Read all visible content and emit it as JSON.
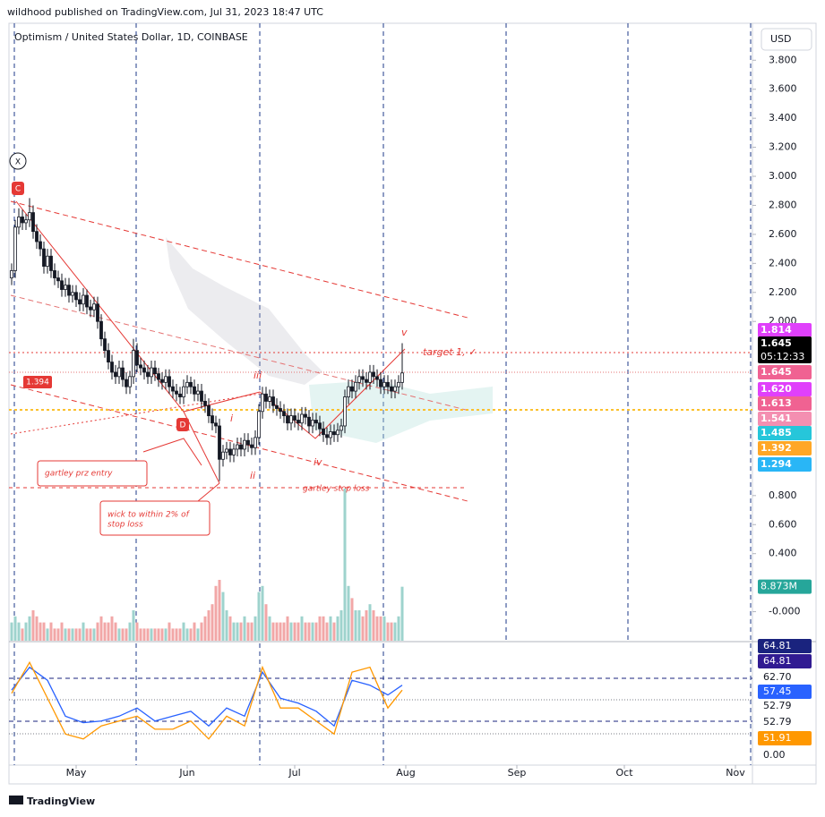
{
  "header": {
    "text": "wildhood published on TradingView.com, Jul 31, 2023 18:47 UTC"
  },
  "footer": {
    "brand": "TradingView"
  },
  "chart_data": {
    "type": "candlestick",
    "title": "Optimism / United States Dollar, 1D, COINBASE",
    "currency": "USD",
    "up_color": "#ffffff",
    "down_color": "#131722",
    "edge_color": "#131722",
    "x": [
      103,
      104,
      105,
      106,
      107,
      108,
      109,
      110,
      111,
      112,
      113,
      114,
      115,
      116,
      117,
      118,
      119,
      120,
      121,
      122,
      123,
      124,
      125,
      126,
      127,
      128,
      129,
      130,
      131,
      132,
      133,
      134,
      135,
      136,
      137,
      138,
      139,
      140,
      141,
      142,
      143,
      144,
      145,
      146,
      147,
      148,
      149,
      150,
      151,
      152,
      153,
      154,
      155,
      156,
      157,
      158,
      159,
      160,
      161,
      162,
      163,
      164,
      165,
      166,
      167,
      168,
      169,
      170,
      171,
      172,
      173,
      174,
      175,
      176,
      177,
      178,
      179,
      180,
      181,
      182,
      183,
      184,
      185,
      186,
      187,
      188,
      189,
      190,
      191,
      192,
      193,
      194,
      195,
      196,
      197,
      198,
      199,
      200,
      201,
      202,
      203,
      204,
      205,
      206,
      207,
      208,
      209,
      210,
      211,
      212
    ],
    "open": [
      2.3,
      2.35,
      2.65,
      2.72,
      2.68,
      2.7,
      2.75,
      2.62,
      2.55,
      2.5,
      2.38,
      2.45,
      2.35,
      2.3,
      2.28,
      2.22,
      2.25,
      2.18,
      2.2,
      2.15,
      2.12,
      2.18,
      2.1,
      2.08,
      2.12,
      2.0,
      1.88,
      1.8,
      1.72,
      1.65,
      1.62,
      1.68,
      1.6,
      1.55,
      1.62,
      1.8,
      1.7,
      1.68,
      1.65,
      1.62,
      1.68,
      1.64,
      1.6,
      1.58,
      1.62,
      1.55,
      1.52,
      1.5,
      1.48,
      1.55,
      1.58,
      1.55,
      1.5,
      1.52,
      1.45,
      1.42,
      1.35,
      1.3,
      1.28,
      1.05,
      1.1,
      1.12,
      1.08,
      1.12,
      1.15,
      1.12,
      1.18,
      1.15,
      1.13,
      1.2,
      1.38,
      1.5,
      1.45,
      1.48,
      1.42,
      1.4,
      1.38,
      1.35,
      1.3,
      1.35,
      1.32,
      1.3,
      1.36,
      1.34,
      1.28,
      1.32,
      1.3,
      1.26,
      1.22,
      1.2,
      1.24,
      1.22,
      1.25,
      1.28,
      1.48,
      1.55,
      1.52,
      1.58,
      1.62,
      1.6,
      1.58,
      1.65,
      1.62,
      1.6,
      1.55,
      1.58,
      1.55,
      1.52,
      1.55,
      1.58
    ],
    "high": [
      2.4,
      2.7,
      2.78,
      2.77,
      2.74,
      2.85,
      2.8,
      2.67,
      2.6,
      2.55,
      2.5,
      2.5,
      2.4,
      2.35,
      2.33,
      2.3,
      2.3,
      2.25,
      2.25,
      2.2,
      2.23,
      2.22,
      2.15,
      2.17,
      2.17,
      2.05,
      1.93,
      1.85,
      1.77,
      1.7,
      1.73,
      1.73,
      1.65,
      1.66,
      1.88,
      1.85,
      1.75,
      1.73,
      1.7,
      1.73,
      1.73,
      1.68,
      1.65,
      1.67,
      1.67,
      1.6,
      1.57,
      1.55,
      1.6,
      1.63,
      1.62,
      1.6,
      1.57,
      1.57,
      1.5,
      1.47,
      1.4,
      1.35,
      1.33,
      1.15,
      1.17,
      1.17,
      1.16,
      1.2,
      1.2,
      1.23,
      1.23,
      1.2,
      1.25,
      1.43,
      1.55,
      1.55,
      1.53,
      1.53,
      1.47,
      1.45,
      1.43,
      1.4,
      1.4,
      1.4,
      1.37,
      1.41,
      1.41,
      1.39,
      1.37,
      1.37,
      1.35,
      1.31,
      1.27,
      1.29,
      1.29,
      1.3,
      1.33,
      1.53,
      1.6,
      1.6,
      1.63,
      1.67,
      1.67,
      1.65,
      1.7,
      1.7,
      1.67,
      1.65,
      1.63,
      1.63,
      1.6,
      1.6,
      1.63,
      1.85
    ],
    "low": [
      2.25,
      2.3,
      2.6,
      2.63,
      2.63,
      2.65,
      2.57,
      2.5,
      2.45,
      2.33,
      2.33,
      2.3,
      2.25,
      2.23,
      2.17,
      2.17,
      2.13,
      2.13,
      2.1,
      2.07,
      2.07,
      2.05,
      2.03,
      2.03,
      1.95,
      1.83,
      1.75,
      1.67,
      1.6,
      1.57,
      1.57,
      1.55,
      1.5,
      1.5,
      1.57,
      1.65,
      1.63,
      1.6,
      1.57,
      1.57,
      1.59,
      1.55,
      1.53,
      1.53,
      1.5,
      1.47,
      1.45,
      1.43,
      1.43,
      1.5,
      1.5,
      1.45,
      1.45,
      1.4,
      1.37,
      1.3,
      1.25,
      1.23,
      0.9,
      1.0,
      1.05,
      1.03,
      1.03,
      1.07,
      1.07,
      1.07,
      1.1,
      1.08,
      1.08,
      1.15,
      1.33,
      1.4,
      1.4,
      1.37,
      1.35,
      1.33,
      1.3,
      1.25,
      1.25,
      1.27,
      1.25,
      1.25,
      1.29,
      1.23,
      1.23,
      1.25,
      1.21,
      1.17,
      1.15,
      1.15,
      1.17,
      1.17,
      1.2,
      1.23,
      1.43,
      1.47,
      1.47,
      1.53,
      1.55,
      1.53,
      1.53,
      1.57,
      1.55,
      1.5,
      1.5,
      1.5,
      1.47,
      1.47,
      1.5,
      1.53
    ],
    "close": [
      2.35,
      2.65,
      2.72,
      2.68,
      2.7,
      2.75,
      2.62,
      2.55,
      2.5,
      2.38,
      2.45,
      2.35,
      2.3,
      2.28,
      2.22,
      2.25,
      2.18,
      2.2,
      2.15,
      2.12,
      2.18,
      2.1,
      2.08,
      2.12,
      2.0,
      1.88,
      1.8,
      1.72,
      1.65,
      1.62,
      1.68,
      1.6,
      1.55,
      1.62,
      1.8,
      1.7,
      1.68,
      1.65,
      1.62,
      1.68,
      1.64,
      1.6,
      1.58,
      1.62,
      1.55,
      1.52,
      1.5,
      1.48,
      1.55,
      1.58,
      1.55,
      1.5,
      1.52,
      1.45,
      1.42,
      1.35,
      1.3,
      1.28,
      1.05,
      1.1,
      1.12,
      1.08,
      1.12,
      1.15,
      1.12,
      1.18,
      1.15,
      1.13,
      1.2,
      1.38,
      1.5,
      1.45,
      1.48,
      1.42,
      1.4,
      1.38,
      1.35,
      1.3,
      1.35,
      1.32,
      1.3,
      1.36,
      1.34,
      1.28,
      1.32,
      1.3,
      1.26,
      1.22,
      1.2,
      1.24,
      1.22,
      1.25,
      1.28,
      1.48,
      1.55,
      1.52,
      1.58,
      1.62,
      1.6,
      1.58,
      1.65,
      1.62,
      1.6,
      1.55,
      1.58,
      1.55,
      1.52,
      1.55,
      1.58,
      1.645
    ],
    "xlim": [
      102.25,
      309.75
    ],
    "xticks": [
      {
        "value": 121,
        "label": "May"
      },
      {
        "value": 152,
        "label": "Jun"
      },
      {
        "value": 182,
        "label": "Jul"
      },
      {
        "value": 213,
        "label": "Aug"
      },
      {
        "value": 244,
        "label": "Sep"
      },
      {
        "value": 274,
        "label": "Oct"
      },
      {
        "value": 305,
        "label": "Nov"
      }
    ],
    "ylim": [
      -0.2,
      4.03
    ],
    "yticks": [
      {
        "value": 3.8,
        "label": "3.800"
      },
      {
        "value": 3.6,
        "label": "3.600"
      },
      {
        "value": 3.4,
        "label": "3.400"
      },
      {
        "value": 3.2,
        "label": "3.200"
      },
      {
        "value": 3.0,
        "label": "3.000"
      },
      {
        "value": 2.8,
        "label": "2.800"
      },
      {
        "value": 2.6,
        "label": "2.600"
      },
      {
        "value": 2.4,
        "label": "2.400"
      },
      {
        "value": 2.2,
        "label": "2.200"
      },
      {
        "value": 2.0,
        "label": "2.000"
      },
      {
        "value": 0.8,
        "label": "0.800"
      },
      {
        "value": 0.6,
        "label": "0.600"
      },
      {
        "value": 0.4,
        "label": "0.400"
      },
      {
        "value": 0,
        "label": "-0.000"
      }
    ],
    "volume": {
      "up_color": "#9ed3cd",
      "down_color": "#f2a7a7",
      "values": [
        3,
        4,
        3,
        2,
        3,
        4,
        5,
        4,
        3,
        3,
        2,
        3,
        2,
        2,
        3,
        2,
        2,
        2,
        2,
        2,
        3,
        2,
        2,
        2,
        3,
        4,
        3,
        3,
        4,
        3,
        2,
        2,
        2,
        3,
        5,
        3,
        2,
        2,
        2,
        2,
        2,
        2,
        2,
        2,
        3,
        2,
        2,
        2,
        3,
        2,
        2,
        3,
        2,
        3,
        4,
        5,
        6,
        9,
        10,
        8,
        5,
        4,
        3,
        3,
        3,
        4,
        3,
        3,
        4,
        8,
        9,
        6,
        4,
        3,
        3,
        3,
        3,
        4,
        3,
        3,
        3,
        4,
        3,
        3,
        3,
        3,
        4,
        4,
        3,
        4,
        3,
        4,
        5,
        25,
        9,
        7,
        5,
        5,
        4,
        5,
        6,
        5,
        4,
        4,
        4,
        3,
        3,
        3,
        4,
        8.873
      ],
      "value_labels": [
        null,
        null,
        null,
        null,
        null,
        null,
        null,
        null,
        null,
        null,
        null,
        null,
        null,
        null,
        null,
        null,
        null,
        null,
        null,
        null,
        null,
        null,
        null,
        null,
        null,
        null,
        null,
        null,
        null,
        null,
        null,
        null,
        null,
        null,
        null,
        null,
        null,
        null,
        null,
        null,
        null,
        null,
        null,
        null,
        null,
        null,
        null,
        null,
        null,
        null,
        null,
        null,
        null,
        null,
        null,
        null,
        null,
        null,
        null,
        null,
        null,
        null,
        null,
        null,
        null,
        null,
        null,
        null,
        null,
        null,
        null,
        null,
        null,
        null,
        null,
        null,
        null,
        null,
        null,
        null,
        null,
        null,
        null,
        null,
        null,
        null,
        null,
        null,
        null,
        null,
        null,
        null,
        null,
        null,
        null,
        null,
        null,
        null,
        null,
        null,
        null,
        null,
        null,
        null,
        null,
        null,
        null,
        null,
        null,
        "8.873M"
      ],
      "label_color": "#26a69a"
    },
    "price_labels": [
      {
        "label": "1.814",
        "color": "#e040fb"
      },
      {
        "label": "1.645",
        "color": "#000000"
      },
      {
        "label": "1.645",
        "color": "#f06292"
      },
      {
        "label": "1.620",
        "color": "#e040fb"
      },
      {
        "label": "1.613",
        "color": "#f06292"
      },
      {
        "label": "1.541",
        "color": "#f48fb1"
      },
      {
        "label": "1.485",
        "color": "#26c6da"
      },
      {
        "label": "1.392",
        "color": "#ffa726"
      },
      {
        "label": "1.294",
        "color": "#29b6f6"
      }
    ],
    "countdown": "05:12:33",
    "annotations": [
      "target 1, ✓",
      "v",
      "iii",
      "iv",
      "ii",
      "i",
      "gartley prz entry",
      "wick to within 2% of",
      "stop loss",
      "gartley stop loss",
      "C",
      "D",
      "X",
      "1.394"
    ],
    "oscillator": {
      "x": [
        103,
        108,
        113,
        118,
        123,
        128,
        133,
        138,
        143,
        148,
        153,
        158,
        163,
        168,
        173,
        178,
        183,
        188,
        193,
        198,
        203,
        208,
        212
      ],
      "ylim": [
        0,
        67
      ],
      "series": [
        {
          "color": "#2962ff",
          "values": [
            40,
            54,
            46,
            24,
            20,
            21,
            24,
            29,
            21,
            24,
            27,
            18,
            29,
            24,
            51,
            35,
            32,
            27,
            18,
            46,
            43,
            37,
            43
          ]
        },
        {
          "color": "#ff9800",
          "values": [
            38,
            57,
            35,
            13,
            10,
            18,
            21,
            24,
            16,
            16,
            21,
            10,
            24,
            18,
            54,
            29,
            29,
            21,
            13,
            51,
            54,
            29,
            40
          ]
        }
      ],
      "labels": [
        {
          "label": "64.81",
          "color": "#1a237e"
        },
        {
          "label": "64.81",
          "color": "#311b92"
        },
        {
          "label": "62.70",
          "color": null
        },
        {
          "label": "57.45",
          "color": "#2962ff"
        },
        {
          "label": "52.79",
          "color": null
        },
        {
          "label": "52.79",
          "color": null
        },
        {
          "label": "51.91",
          "color": "#ff9800"
        },
        {
          "label": "0.00",
          "color": null
        }
      ]
    }
  }
}
